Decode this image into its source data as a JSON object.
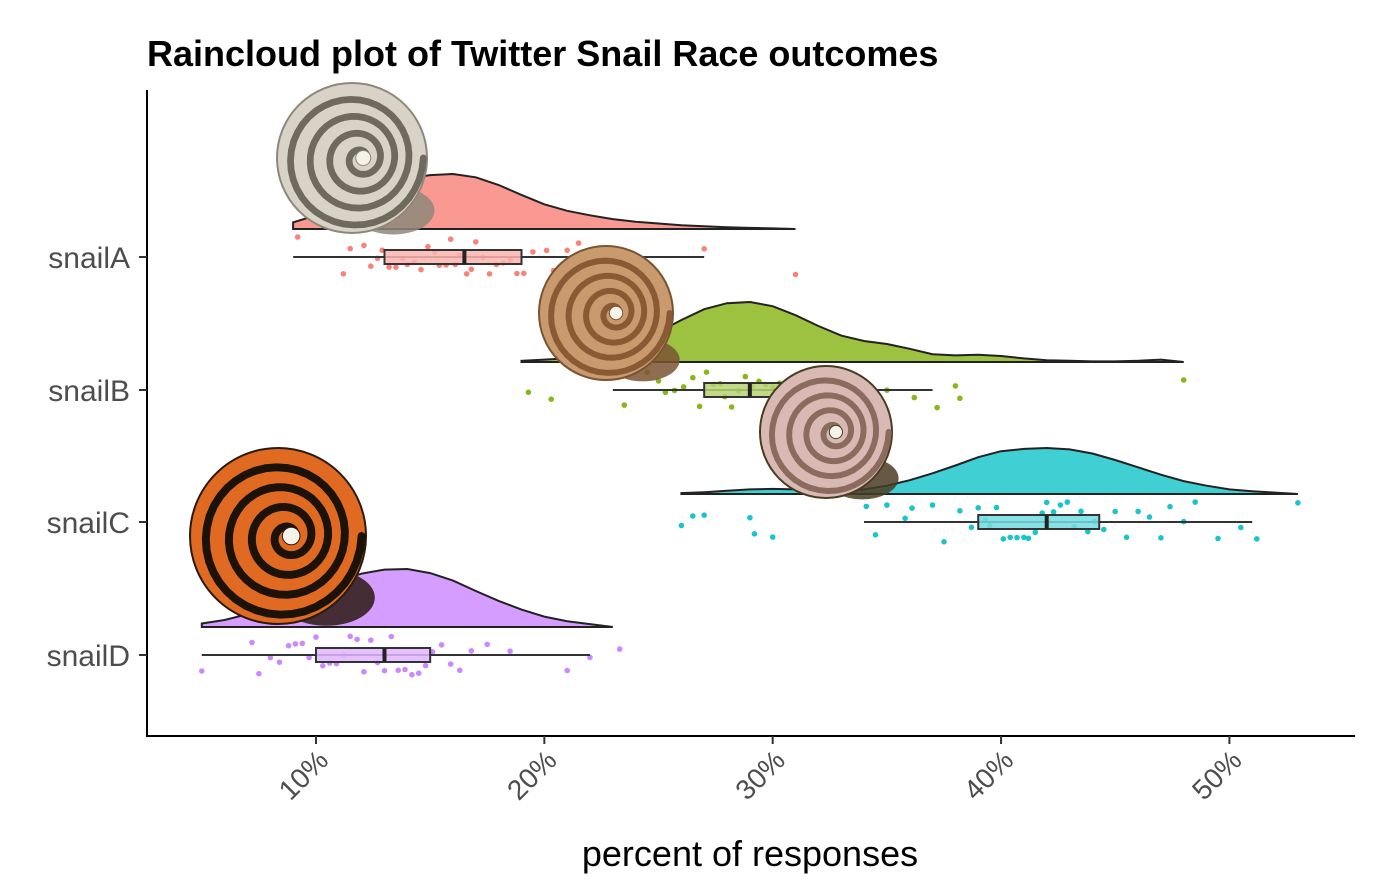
{
  "chart_data": {
    "type": "raincloud",
    "title": "Raincloud plot of Twitter Snail Race outcomes",
    "subtitle": "",
    "xlabel": "percent of responses",
    "ylabel": "",
    "xlim": [
      2.6,
      55.5
    ],
    "x_ticks": [
      10,
      20,
      30,
      40,
      50
    ],
    "x_tick_labels": [
      "10%",
      "20%",
      "30%",
      "40%",
      "50%"
    ],
    "x_tick_rotation_deg": 45,
    "grid": false,
    "legend": "none",
    "categories": [
      "snailA",
      "snailB",
      "snailC",
      "snailD"
    ],
    "series": [
      {
        "name": "snailA",
        "color": "#F8766D",
        "icon": "white-spiral-snail-shell-icon",
        "min": 9,
        "q1": 13,
        "median": 16.5,
        "q3": 19,
        "max": 27,
        "density_max": 31,
        "density": [
          [
            9,
            0.12
          ],
          [
            10,
            0.25
          ],
          [
            11,
            0.45
          ],
          [
            12,
            0.62
          ],
          [
            13,
            0.8
          ],
          [
            14,
            0.92
          ],
          [
            15,
            0.98
          ],
          [
            16,
            1.0
          ],
          [
            17,
            0.94
          ],
          [
            18,
            0.8
          ],
          [
            19,
            0.62
          ],
          [
            20,
            0.45
          ],
          [
            21,
            0.33
          ],
          [
            22,
            0.25
          ],
          [
            23,
            0.18
          ],
          [
            24,
            0.13
          ],
          [
            25,
            0.1
          ],
          [
            26,
            0.07
          ],
          [
            27,
            0.05
          ],
          [
            28,
            0.03
          ],
          [
            29,
            0.02
          ],
          [
            30,
            0.01
          ],
          [
            31,
            0
          ]
        ],
        "points": [
          9.2,
          11.2,
          11.5,
          12.1,
          12.4,
          12.7,
          12.9,
          13.2,
          13.5,
          13.8,
          14.0,
          14.3,
          14.6,
          14.9,
          15.2,
          15.4,
          15.7,
          15.9,
          16.1,
          16.3,
          16.6,
          16.8,
          17.0,
          17.3,
          17.6,
          17.9,
          18.2,
          18.5,
          18.8,
          19.1,
          19.5,
          20.1,
          20.4,
          21.0,
          21.5,
          23.0,
          23.5,
          27.0,
          31.0
        ]
      },
      {
        "name": "snailB",
        "color": "#7CAE00",
        "icon": "brown-snail-shell-icon",
        "min": 23,
        "q1": 27,
        "median": 29,
        "q3": 31,
        "max": 37,
        "density_max": 48,
        "density": [
          [
            19,
            0.02
          ],
          [
            20,
            0.04
          ],
          [
            21,
            0.06
          ],
          [
            22,
            0.1
          ],
          [
            23,
            0.18
          ],
          [
            24,
            0.32
          ],
          [
            25,
            0.5
          ],
          [
            26,
            0.7
          ],
          [
            27,
            0.88
          ],
          [
            28,
            0.98
          ],
          [
            29,
            1.0
          ],
          [
            30,
            0.93
          ],
          [
            31,
            0.78
          ],
          [
            32,
            0.6
          ],
          [
            33,
            0.44
          ],
          [
            34,
            0.35
          ],
          [
            35,
            0.3
          ],
          [
            36,
            0.22
          ],
          [
            37,
            0.13
          ],
          [
            38,
            0.11
          ],
          [
            39,
            0.12
          ],
          [
            40,
            0.1
          ],
          [
            41,
            0.06
          ],
          [
            42,
            0.03
          ],
          [
            43,
            0.02
          ],
          [
            44,
            0.01
          ],
          [
            45,
            0.01
          ],
          [
            46,
            0.02
          ],
          [
            47,
            0.04
          ],
          [
            48,
            0
          ]
        ],
        "points": [
          19.3,
          20.3,
          23.5,
          24.5,
          25.0,
          25.3,
          25.7,
          26.1,
          26.5,
          26.8,
          27.1,
          27.4,
          27.7,
          27.9,
          28.2,
          28.5,
          28.8,
          29.1,
          29.4,
          29.7,
          30.0,
          30.3,
          30.6,
          30.9,
          31.2,
          31.5,
          32.0,
          32.5,
          33.1,
          33.6,
          34.3,
          35.0,
          36.2,
          37.2,
          38.0,
          38.2,
          48.0
        ]
      },
      {
        "name": "snailC",
        "color": "#00BFC4",
        "icon": "pink-striped-snail-shell-icon",
        "min": 34,
        "q1": 39,
        "median": 42,
        "q3": 44.3,
        "max": 51,
        "density_max": 53,
        "density": [
          [
            26,
            0.02
          ],
          [
            27,
            0.04
          ],
          [
            28,
            0.07
          ],
          [
            29,
            0.1
          ],
          [
            30,
            0.11
          ],
          [
            31,
            0.1
          ],
          [
            32,
            0.08
          ],
          [
            33,
            0.07
          ],
          [
            34,
            0.1
          ],
          [
            35,
            0.18
          ],
          [
            36,
            0.3
          ],
          [
            37,
            0.45
          ],
          [
            38,
            0.62
          ],
          [
            39,
            0.8
          ],
          [
            40,
            0.93
          ],
          [
            41,
            0.98
          ],
          [
            42,
            1.0
          ],
          [
            43,
            0.97
          ],
          [
            44,
            0.88
          ],
          [
            45,
            0.74
          ],
          [
            46,
            0.58
          ],
          [
            47,
            0.42
          ],
          [
            48,
            0.28
          ],
          [
            49,
            0.18
          ],
          [
            50,
            0.1
          ],
          [
            51,
            0.06
          ],
          [
            52,
            0.03
          ],
          [
            53,
            0
          ]
        ],
        "points": [
          26.0,
          26.5,
          27.0,
          29.0,
          29.2,
          30.0,
          34.1,
          34.5,
          35.0,
          35.8,
          36.1,
          37.0,
          37.5,
          38.2,
          38.7,
          39.0,
          39.3,
          39.5,
          39.8,
          40.1,
          40.4,
          40.7,
          41.0,
          41.2,
          41.5,
          41.8,
          42.0,
          42.3,
          42.6,
          42.9,
          43.2,
          43.5,
          43.8,
          44.1,
          44.5,
          45.0,
          45.5,
          46.0,
          46.5,
          47.0,
          47.4,
          48.0,
          48.5,
          49.5,
          50.5,
          51.2,
          53.0
        ]
      },
      {
        "name": "snailD",
        "color": "#C77CFF",
        "icon": "orange-banded-snail-shell-icon",
        "min": 5,
        "q1": 10,
        "median": 13,
        "q3": 15,
        "max": 22,
        "density_max": 23,
        "density": [
          [
            5,
            0.06
          ],
          [
            6,
            0.12
          ],
          [
            7,
            0.22
          ],
          [
            8,
            0.35
          ],
          [
            9,
            0.5
          ],
          [
            10,
            0.65
          ],
          [
            11,
            0.8
          ],
          [
            12,
            0.92
          ],
          [
            13,
            0.99
          ],
          [
            14,
            1.0
          ],
          [
            15,
            0.93
          ],
          [
            16,
            0.8
          ],
          [
            17,
            0.62
          ],
          [
            18,
            0.45
          ],
          [
            19,
            0.3
          ],
          [
            20,
            0.18
          ],
          [
            21,
            0.1
          ],
          [
            22,
            0.05
          ],
          [
            23,
            0
          ]
        ],
        "points": [
          5.0,
          7.2,
          7.5,
          8.0,
          8.4,
          8.8,
          9.1,
          9.4,
          9.7,
          10.0,
          10.3,
          10.6,
          10.9,
          11.2,
          11.5,
          11.8,
          12.1,
          12.4,
          12.7,
          13.0,
          13.3,
          13.6,
          13.9,
          14.2,
          14.5,
          14.8,
          15.1,
          15.5,
          15.9,
          16.3,
          16.8,
          17.5,
          18.5,
          21.0,
          22.0,
          23.3
        ]
      }
    ]
  }
}
